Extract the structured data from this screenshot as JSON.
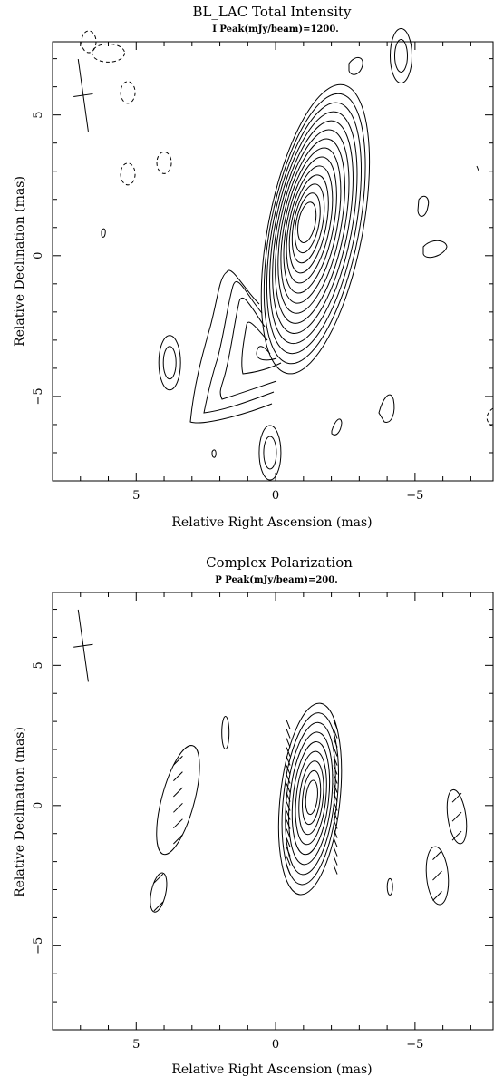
{
  "chart_data": [
    {
      "type": "contour",
      "title": "BL_LAC  Total Intensity",
      "subtitle": "I Peak(mJy/beam)=1200.",
      "xlabel": "Relative Right Ascension (mas)",
      "ylabel": "Relative Declination (mas)",
      "xlim": [
        8.0,
        -7.8
      ],
      "ylim": [
        -8.0,
        7.6
      ],
      "xticks": [
        {
          "value": 5,
          "label": "5"
        },
        {
          "value": 0,
          "label": "0"
        },
        {
          "value": -5,
          "label": "−5"
        }
      ],
      "yticks": [
        {
          "value": 5,
          "label": "5"
        },
        {
          "value": 0,
          "label": "0"
        },
        {
          "value": -5,
          "label": "−5"
        }
      ],
      "peak": 1200,
      "peak_position": [
        -1.1,
        1.2
      ],
      "beam": {
        "x": 6.9,
        "y": 5.7,
        "major": 2.6,
        "minor": 0.7,
        "pa_deg": -8
      },
      "core_levels": 14,
      "secondary_components": [
        {
          "x": 3.8,
          "y": -3.8,
          "levels": 2
        },
        {
          "x": 0.2,
          "y": -7.0,
          "levels": 2
        },
        {
          "x": -4.5,
          "y": 7.1,
          "levels": 2
        }
      ],
      "negative_contours": [
        {
          "x": 6.0,
          "y": 7.2
        },
        {
          "x": 5.3,
          "y": 5.8
        },
        {
          "x": 5.3,
          "y": 2.9
        },
        {
          "x": 4.0,
          "y": 3.3
        },
        {
          "x": 6.7,
          "y": 7.6
        }
      ]
    },
    {
      "type": "contour",
      "title": "Complex Polarization",
      "subtitle": "P Peak(mJy/beam)=200.",
      "xlabel": "Relative Right Ascension (mas)",
      "ylabel": "Relative Declination (mas)",
      "xlim": [
        8.0,
        -7.8
      ],
      "ylim": [
        -8.0,
        7.6
      ],
      "xticks": [
        {
          "value": 5,
          "label": "5"
        },
        {
          "value": 0,
          "label": "0"
        },
        {
          "value": -5,
          "label": "−5"
        }
      ],
      "yticks": [
        {
          "value": 5,
          "label": "5"
        },
        {
          "value": 0,
          "label": "0"
        },
        {
          "value": -5,
          "label": "−5"
        }
      ],
      "peak": 200,
      "peak_position": [
        -1.3,
        0.3
      ],
      "beam": {
        "x": 6.9,
        "y": 5.7,
        "major": 2.6,
        "minor": 0.7,
        "pa_deg": -8
      },
      "core_levels": 9,
      "components": [
        {
          "x": 3.5,
          "y": 0.2
        },
        {
          "x": 1.8,
          "y": 2.6
        },
        {
          "x": 4.2,
          "y": -3.1
        },
        {
          "x": -6.5,
          "y": -0.4
        },
        {
          "x": -5.8,
          "y": -2.5
        },
        {
          "x": -4.1,
          "y": -2.9
        }
      ]
    }
  ]
}
